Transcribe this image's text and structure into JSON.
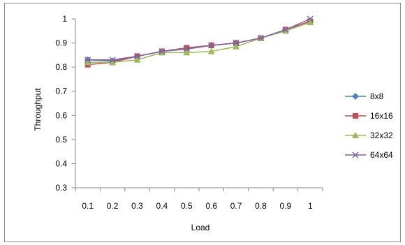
{
  "chart_data": {
    "type": "line",
    "title": "",
    "xlabel": "Load",
    "ylabel": "Throughput",
    "categories": [
      "0.1",
      "0.2",
      "0.3",
      "0.4",
      "0.5",
      "0.6",
      "0.7",
      "0.8",
      "0.9",
      "1"
    ],
    "ylim": [
      0.3,
      1
    ],
    "yticks": [
      "0.3",
      "0.4",
      "0.5",
      "0.6",
      "0.7",
      "0.8",
      "0.9",
      "1"
    ],
    "grid": false,
    "legend_position": "right",
    "series": [
      {
        "name": "8x8",
        "color": "#4F81BD",
        "marker": "diamond",
        "values": [
          0.83,
          0.825,
          0.845,
          0.865,
          0.875,
          0.89,
          0.9,
          0.92,
          0.955,
          0.99
        ]
      },
      {
        "name": "16x16",
        "color": "#C0504D",
        "marker": "square",
        "values": [
          0.81,
          0.82,
          0.845,
          0.865,
          0.88,
          0.89,
          0.9,
          0.92,
          0.955,
          0.99
        ]
      },
      {
        "name": "32x32",
        "color": "#9BBB59",
        "marker": "triangle",
        "values": [
          0.82,
          0.82,
          0.83,
          0.86,
          0.86,
          0.865,
          0.885,
          0.92,
          0.95,
          0.985
        ]
      },
      {
        "name": "64x64",
        "color": "#8064A2",
        "marker": "x",
        "values": [
          0.83,
          0.83,
          0.845,
          0.865,
          0.875,
          0.89,
          0.9,
          0.92,
          0.955,
          1.0
        ]
      }
    ]
  }
}
